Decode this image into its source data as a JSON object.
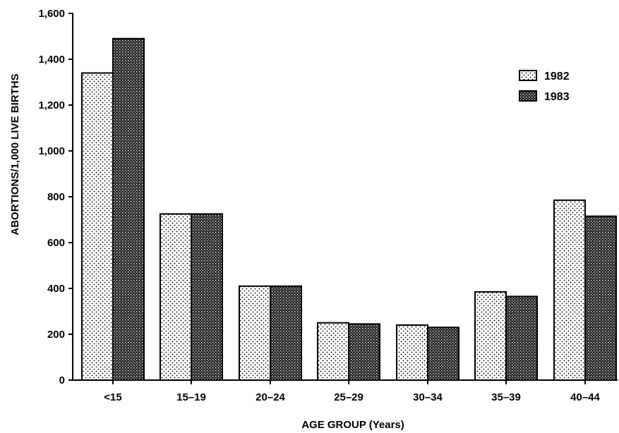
{
  "chart_data": {
    "type": "bar",
    "xlabel": "AGE GROUP (Years)",
    "ylabel": "ABORTIONS/1,000 LIVE BIRTHS",
    "ylim": [
      0,
      1600
    ],
    "yticks": [
      0,
      200,
      400,
      600,
      800,
      1000,
      1200,
      1400,
      1600
    ],
    "ytick_labels": [
      "0",
      "200",
      "400",
      "600",
      "800",
      "1,000",
      "1,200",
      "1,400",
      "1,600"
    ],
    "categories": [
      "<15",
      "15–19",
      "20–24",
      "25–29",
      "30–34",
      "35–39",
      "40–44"
    ],
    "series": [
      {
        "name": "1982",
        "pattern": "light-dots",
        "values": [
          1340,
          725,
          410,
          250,
          240,
          385,
          785
        ]
      },
      {
        "name": "1983",
        "pattern": "dark-crosshatch",
        "values": [
          1490,
          725,
          410,
          245,
          230,
          365,
          715
        ]
      }
    ],
    "legend": "top-right",
    "grid": false
  }
}
